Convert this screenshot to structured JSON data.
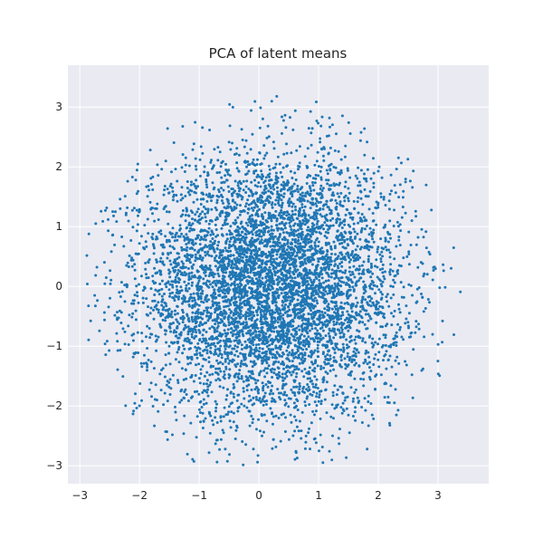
{
  "chart_data": {
    "type": "scatter",
    "title": "PCA of latent means",
    "xlabel": "",
    "ylabel": "",
    "xlim": [
      -3.2,
      3.85
    ],
    "ylim": [
      -3.3,
      3.7
    ],
    "xticks": [
      -3,
      -2,
      -1,
      0,
      1,
      2,
      3
    ],
    "yticks": [
      -3,
      -2,
      -1,
      0,
      1,
      2,
      3
    ],
    "grid": true,
    "legend": "none",
    "point_color": "#1f77b4",
    "background_color": "#eaeaf2",
    "grid_color": "#ffffff",
    "point_count_approx": 6000,
    "distribution": {
      "center": [
        0.2,
        0.0
      ],
      "spread_x": 1.3,
      "spread_y": 1.3,
      "x_range": [
        -2.9,
        3.6
      ],
      "y_range": [
        -3.0,
        3.4
      ]
    },
    "note_points": "Individual point coordinates are too dense to transcribe; points approximate the visible distribution."
  }
}
